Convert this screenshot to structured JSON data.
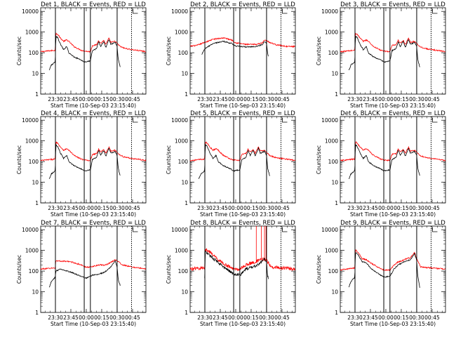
{
  "chart_data": [
    {
      "type": "line",
      "title": "Det 1, BLACK = Events, RED = LLD",
      "variant": 0,
      "xlabel": "Start Time (10-Sep-03 23:15:40)",
      "ylabel": "Counts/sec"
    },
    {
      "type": "line",
      "title": "Det 2, BLACK = Events, RED = LLD",
      "variant": 1,
      "xlabel": "Start Time (10-Sep-03 23:15:40)",
      "ylabel": "Counts/sec"
    },
    {
      "type": "line",
      "title": "Det 3, BLACK = Events, RED = LLD",
      "variant": 0,
      "xlabel": "Start Time (10-Sep-03 23:15:40)",
      "ylabel": "Counts/sec"
    },
    {
      "type": "line",
      "title": "Det 4, BLACK = Events, RED = LLD",
      "variant": 0,
      "xlabel": "Start Time (10-Sep-03 23:15:40)",
      "ylabel": "Counts/sec"
    },
    {
      "type": "line",
      "title": "Det 5, BLACK = Events, RED = LLD",
      "variant": 0,
      "xlabel": "Start Time (10-Sep-03 23:15:40)",
      "ylabel": "Counts/sec"
    },
    {
      "type": "line",
      "title": "Det 6, BLACK = Events, RED = LLD",
      "variant": 0,
      "xlabel": "Start Time (10-Sep-03 23:15:40)",
      "ylabel": "Counts/sec"
    },
    {
      "type": "line",
      "title": "Det 7, BLACK = Events, RED = LLD",
      "variant": 2,
      "xlabel": "Start Time (10-Sep-03 23:15:40)",
      "ylabel": "Counts/sec"
    },
    {
      "type": "line",
      "title": "Det 8, BLACK = Events, RED = LLD",
      "variant": 3,
      "xlabel": "Start Time (10-Sep-03 23:15:40)",
      "ylabel": "Counts/sec"
    },
    {
      "type": "line",
      "title": "Det 9, BLACK = Events, RED = LLD",
      "variant": 4,
      "xlabel": "Start Time (10-Sep-03 23:15:40)",
      "ylabel": "Counts/sec"
    }
  ],
  "shared": {
    "x_tick_labels": [
      "23:30",
      "23:45",
      "00:00",
      "00:15",
      "00:30",
      "00:45"
    ],
    "x_tick_minutes": [
      30,
      45,
      60,
      75,
      90,
      105
    ],
    "x_range_minutes": [
      15.67,
      118
    ],
    "y_scale": "log",
    "y_range": [
      1,
      15000
    ],
    "y_tick_labels": [
      "1",
      "10",
      "100",
      "1000",
      "10000"
    ],
    "vertical_lines_minutes": [
      30,
      58,
      64,
      90
    ],
    "dotted_line_minutes": 104,
    "series_colors": {
      "events": "#000000",
      "lld": "#ff0000"
    }
  }
}
